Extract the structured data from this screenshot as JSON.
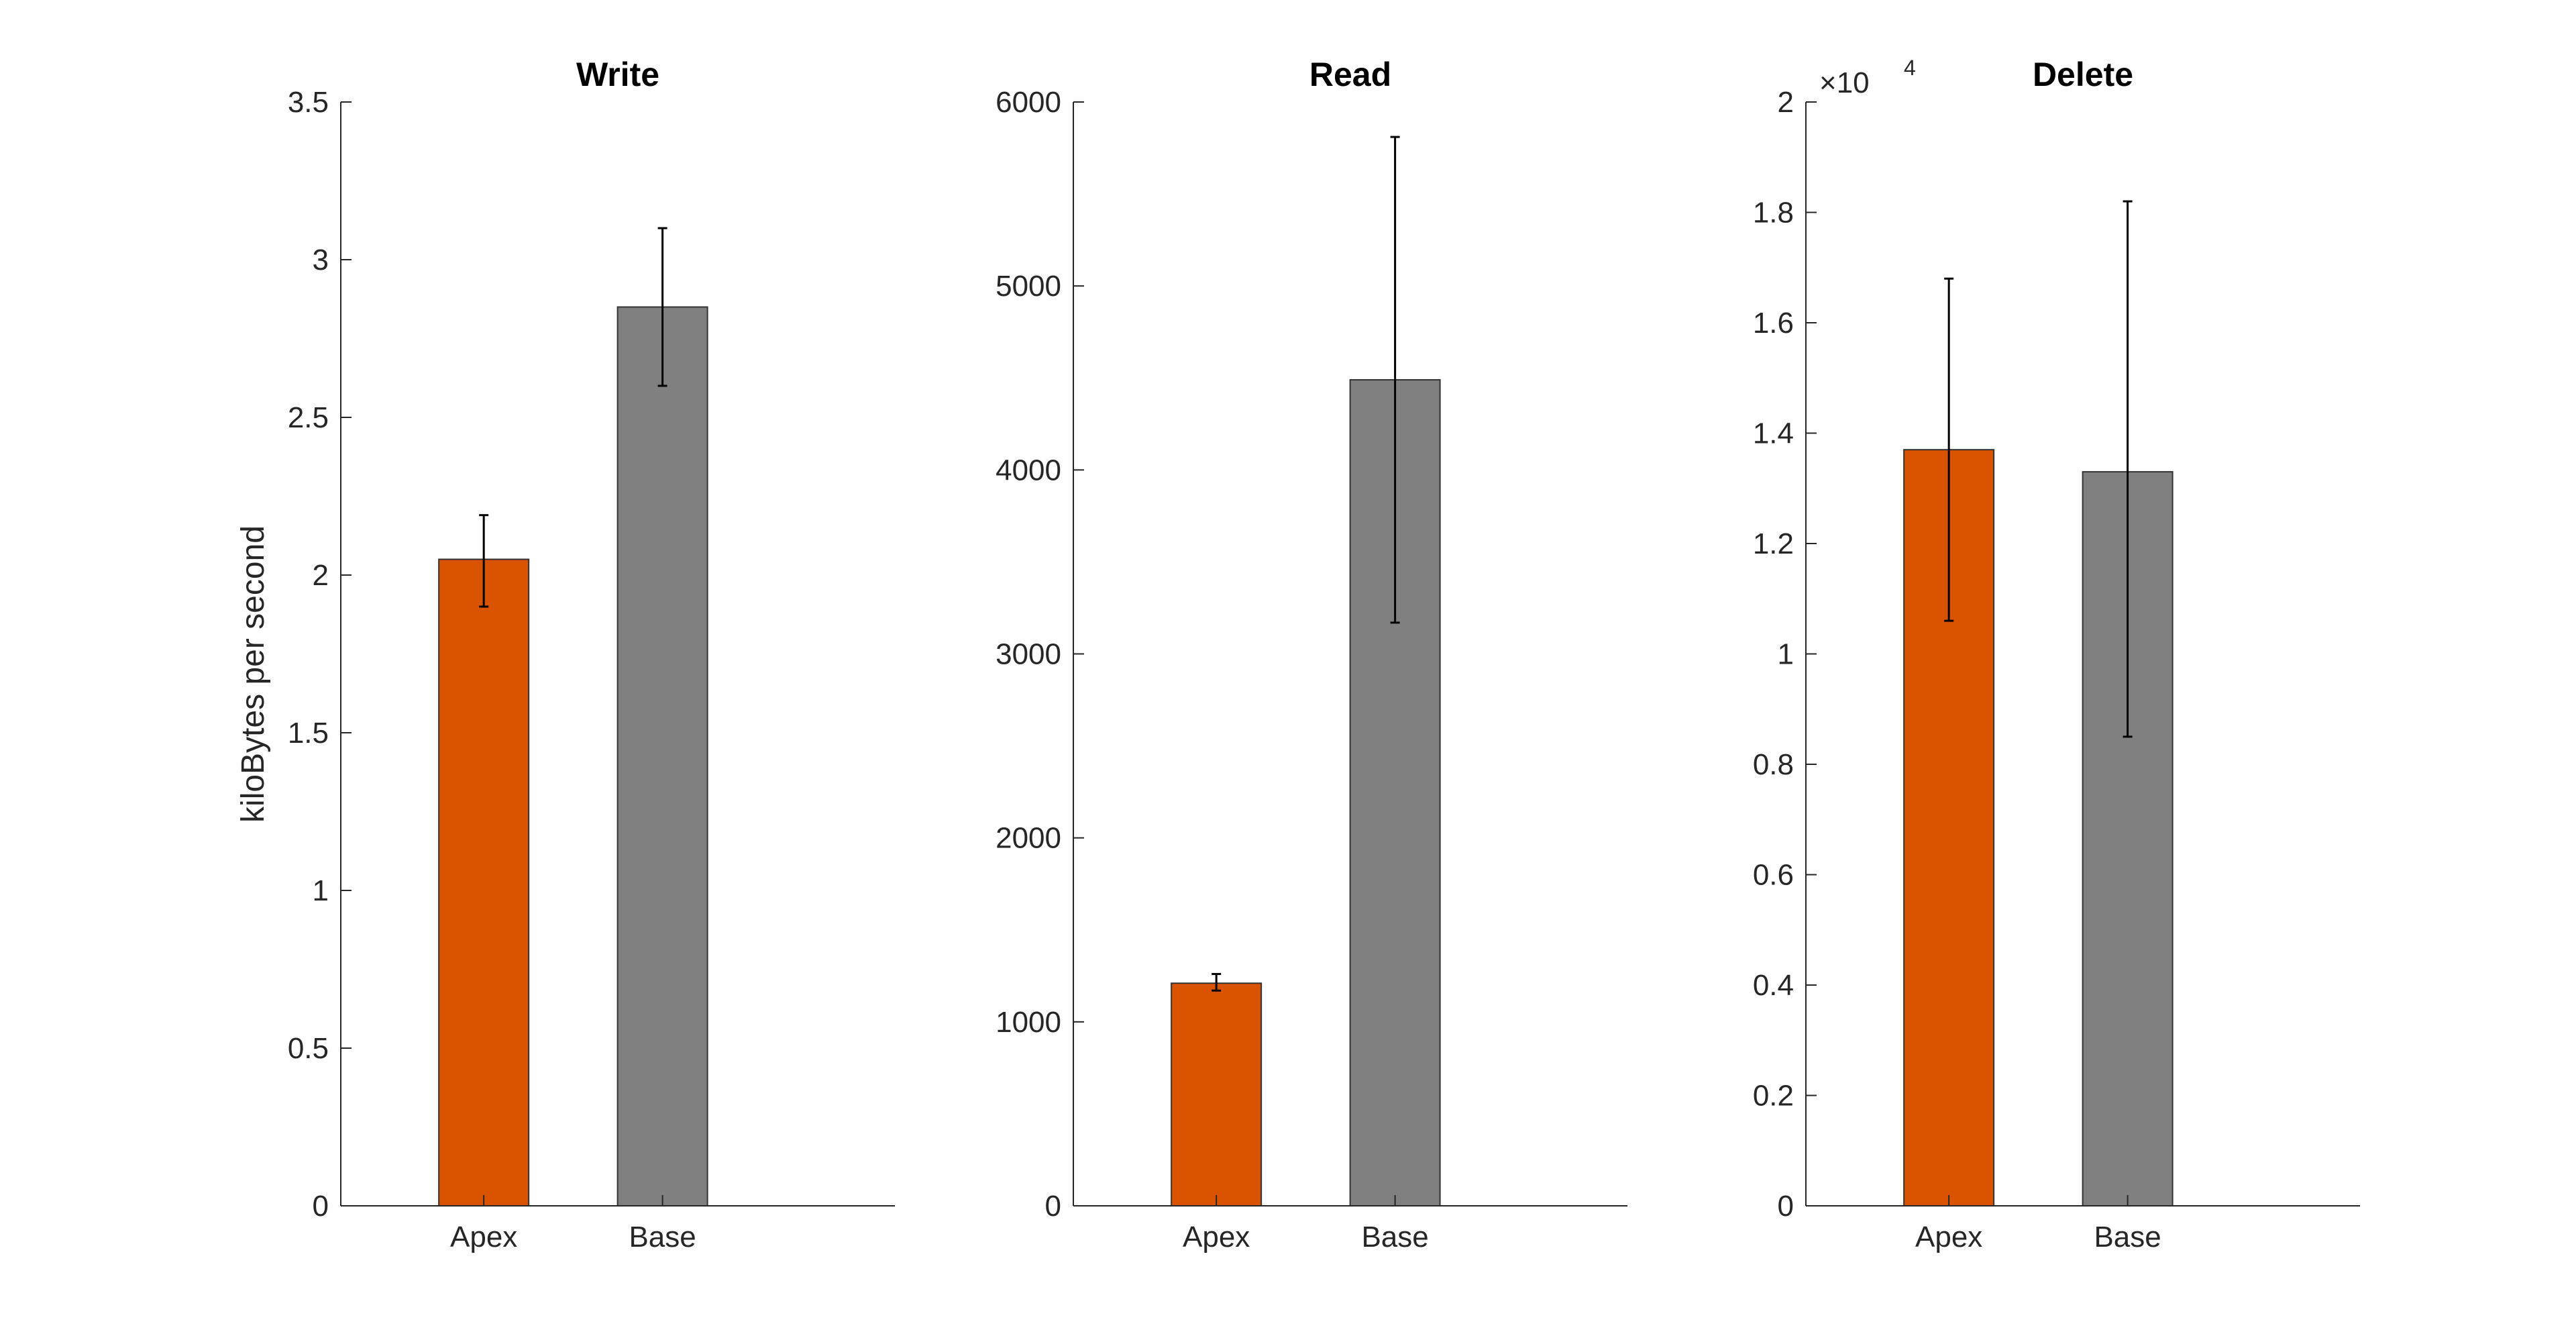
{
  "chart_data": [
    {
      "type": "bar",
      "title": "Write",
      "ylabel": "kiloBytes per second",
      "categories": [
        "Apex",
        "Base"
      ],
      "values": [
        2.05,
        2.85
      ],
      "error_low": [
        1.9,
        2.6
      ],
      "error_high": [
        2.19,
        3.1
      ],
      "colors": [
        "#D95300",
        "#808080"
      ],
      "ylim": [
        0,
        3.5
      ],
      "yticks": [
        0,
        0.5,
        1,
        1.5,
        2,
        2.5,
        3,
        3.5
      ],
      "ytick_labels": [
        "0",
        "0.5",
        "1",
        "1.5",
        "2",
        "2.5",
        "3",
        "3.5"
      ],
      "xlim": [
        0.2,
        3.3
      ],
      "grid": false
    },
    {
      "type": "bar",
      "title": "Read",
      "ylabel": "",
      "categories": [
        "Apex",
        "Base"
      ],
      "values": [
        1210,
        4490
      ],
      "error_low": [
        1170,
        3170
      ],
      "error_high": [
        1260,
        5810
      ],
      "colors": [
        "#D95300",
        "#808080"
      ],
      "ylim": [
        0,
        6000
      ],
      "yticks": [
        0,
        1000,
        2000,
        3000,
        4000,
        5000,
        6000
      ],
      "ytick_labels": [
        "0",
        "1000",
        "2000",
        "3000",
        "4000",
        "5000",
        "6000"
      ],
      "xlim": [
        0.2,
        3.3
      ],
      "grid": false
    },
    {
      "type": "bar",
      "title": "Delete",
      "ylabel": "",
      "categories": [
        "Apex",
        "Base"
      ],
      "values": [
        13700,
        13300
      ],
      "error_low": [
        10600,
        8500
      ],
      "error_high": [
        16800,
        18200
      ],
      "colors": [
        "#D95300",
        "#808080"
      ],
      "ylim": [
        0,
        20000
      ],
      "yticks": [
        0,
        2000,
        4000,
        6000,
        8000,
        10000,
        12000,
        14000,
        16000,
        18000,
        20000
      ],
      "ytick_labels": [
        "0",
        "0.2",
        "0.4",
        "0.6",
        "0.8",
        "1",
        "1.2",
        "1.4",
        "1.6",
        "1.8",
        "2"
      ],
      "exponent_label": "×10",
      "exponent_power": "4",
      "xlim": [
        0.2,
        3.3
      ],
      "grid": false
    }
  ]
}
